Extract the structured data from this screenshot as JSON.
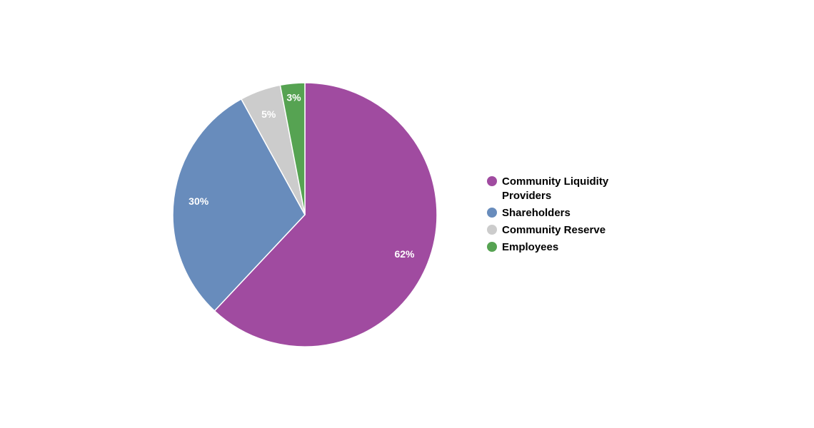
{
  "chart_data": {
    "type": "pie",
    "slices": [
      {
        "label": "Community Liquidity Providers",
        "value": 62,
        "display": "62%",
        "color": "#a04ba0"
      },
      {
        "label": "Shareholders",
        "value": 30,
        "display": "30%",
        "color": "#688cbc"
      },
      {
        "label": "Community Reserve",
        "value": 5,
        "display": "5%",
        "color": "#cccccc"
      },
      {
        "label": "Employees",
        "value": 3,
        "display": "3%",
        "color": "#56a352"
      }
    ],
    "legend_position": "right"
  }
}
